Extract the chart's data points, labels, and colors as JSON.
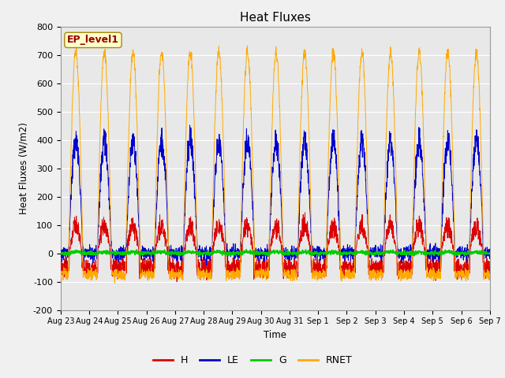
{
  "title": "Heat Fluxes",
  "ylabel": "Heat Fluxes (W/m2)",
  "xlabel": "Time",
  "ylim": [
    -200,
    800
  ],
  "yticks": [
    -200,
    -100,
    0,
    100,
    200,
    300,
    400,
    500,
    600,
    700,
    800
  ],
  "xtick_labels": [
    "Aug 23",
    "Aug 24",
    "Aug 25",
    "Aug 26",
    "Aug 27",
    "Aug 28",
    "Aug 29",
    "Aug 30",
    "Aug 31",
    "Sep 1",
    "Sep 2",
    "Sep 3",
    "Sep 4",
    "Sep 5",
    "Sep 6",
    "Sep 7"
  ],
  "legend_labels": [
    "H",
    "LE",
    "G",
    "RNET"
  ],
  "legend_colors": [
    "#dd0000",
    "#0000cc",
    "#00cc00",
    "#ffaa00"
  ],
  "line_colors": {
    "H": "#dd0000",
    "LE": "#0000cc",
    "G": "#00cc00",
    "RNET": "#ffaa00"
  },
  "annotation_text": "EP_level1",
  "annotation_color": "#990000",
  "annotation_bg": "#ffffcc",
  "fig_bg_color": "#f0f0f0",
  "plot_bg_color": "#e8e8e8",
  "title_fontsize": 11,
  "num_days": 15,
  "pts_per_day": 144
}
